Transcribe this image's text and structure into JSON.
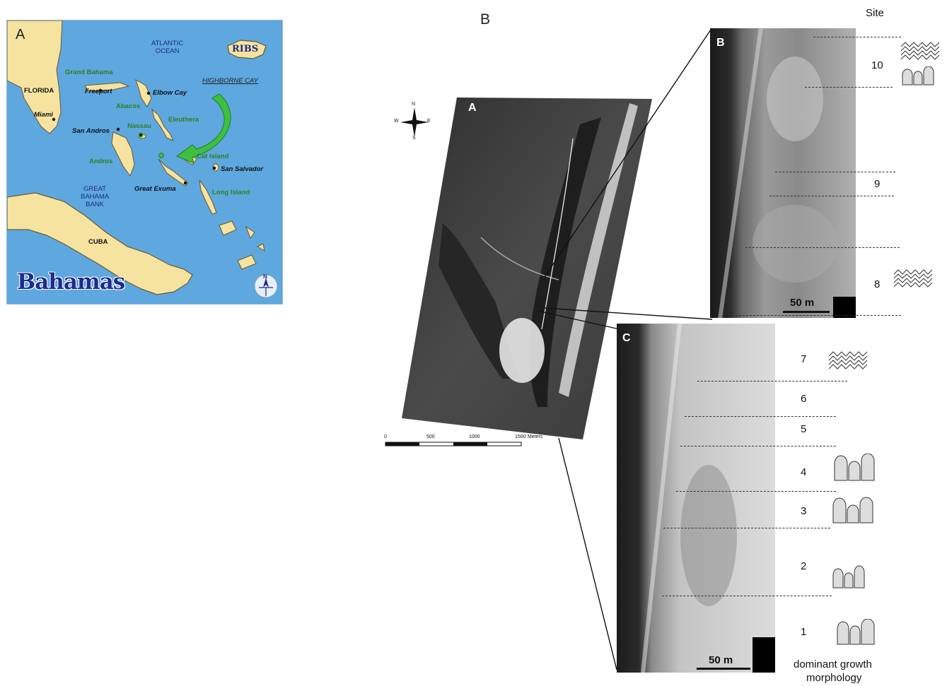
{
  "panels": {
    "left_letter": "A",
    "right_letter": "B"
  },
  "map": {
    "title": "Bahamas",
    "badge": "RIBS",
    "north_label": "N",
    "labels": {
      "ocean": "ATLANTIC\nOCEAN",
      "highborne": "HIGHBORNE CAY",
      "florida": "FLORIDA",
      "miami": "Miami",
      "grand_bahama": "Grand Bahama",
      "freeport": "Freeport",
      "elbow_cay": "Elbow Cay",
      "abacos": "Abacos",
      "eleuthera": "Eleuthera",
      "nassau": "Nassau",
      "san_andros": "San Andros",
      "andros": "Andros",
      "cat_island": "Cat Island",
      "san_salvador": "San Salvador",
      "great_exuma": "Great Exuma",
      "long_island": "Long Island",
      "bank": "GREAT\nBAHAMA\nBANK",
      "cuba": "CUBA"
    }
  },
  "aerial": {
    "overview_letter": "A",
    "inset_b_letter": "B",
    "inset_c_letter": "C",
    "compass": {
      "n": "N",
      "s": "S",
      "e": "E",
      "w": "W"
    },
    "scalebar": {
      "ticks": [
        "0",
        "500",
        "1000",
        "1500"
      ],
      "unit": "Meters"
    },
    "inset_b_scale": "50 m",
    "inset_c_scale": "50 m"
  },
  "sites": {
    "header": "Site",
    "rows": [
      {
        "num": "10",
        "morph": [
          "ridged",
          "columnar"
        ]
      },
      {
        "num": "9",
        "morph": []
      },
      {
        "num": "8",
        "morph": [
          "ridged"
        ]
      },
      {
        "num": "7",
        "morph": [
          "ridged"
        ]
      },
      {
        "num": "6",
        "morph": []
      },
      {
        "num": "5",
        "morph": []
      },
      {
        "num": "4",
        "morph": [
          "columnar"
        ]
      },
      {
        "num": "3",
        "morph": [
          "columnar"
        ]
      },
      {
        "num": "2",
        "morph": [
          "columnar"
        ]
      },
      {
        "num": "1",
        "morph": [
          "columnar"
        ]
      }
    ],
    "footer_line1": "dominant growth",
    "footer_line2": "morphology"
  },
  "colors": {
    "sea": "#5ea7df",
    "land": "#f7e3a0",
    "arrow": "#3fbf3f",
    "navy": "#1d2c8c"
  }
}
